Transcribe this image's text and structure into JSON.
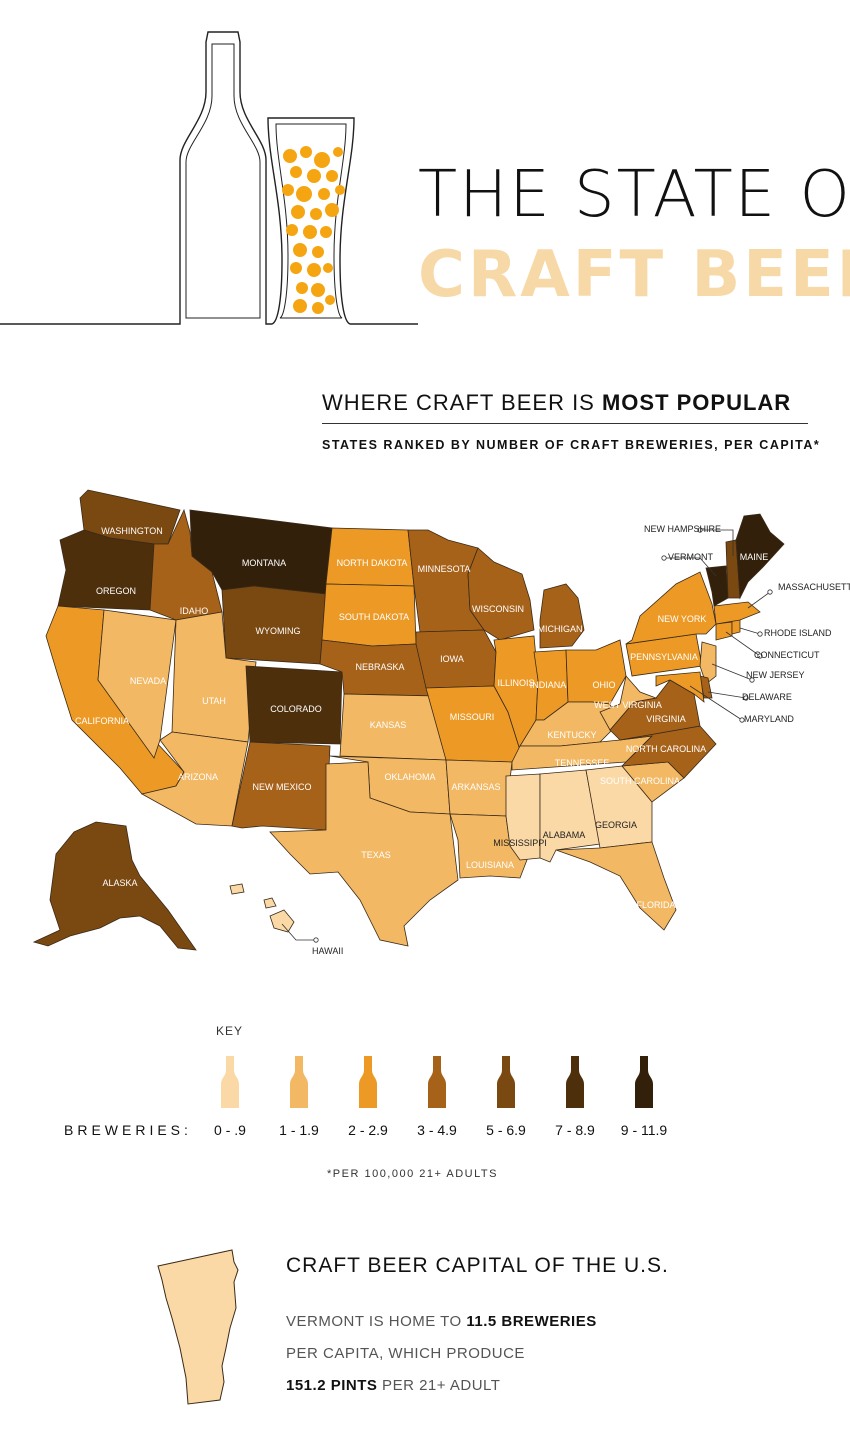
{
  "header": {
    "title_line1": "THE STATE OF",
    "title_line2": "CRAFT BEER"
  },
  "section": {
    "heading_plain": "WHERE CRAFT BEER IS ",
    "heading_bold": "MOST POPULAR",
    "subtitle": "STATES RANKED BY NUMBER OF CRAFT BREWERIES, PER CAPITA*"
  },
  "colors": {
    "c1": "#fad9a6",
    "c2": "#f2b864",
    "c3": "#ec9a25",
    "c4": "#a7621a",
    "c5": "#7a4811",
    "c6": "#4e2f0c",
    "c7": "#33200a",
    "bubble": "#f5a511"
  },
  "chart_data": {
    "type": "choropleth",
    "title": "WHERE CRAFT BEER IS MOST POPULAR",
    "subtitle": "STATES RANKED BY NUMBER OF CRAFT BREWERIES, PER CAPITA*",
    "legend": {
      "title": "KEY",
      "label": "BREWERIES:",
      "bins": [
        "0 - .9",
        "1 - 1.9",
        "2 - 2.9",
        "3 - 4.9",
        "5 - 6.9",
        "7 - 8.9",
        "9 - 11.9"
      ]
    },
    "footnote": "*PER 100,000 21+ ADULTS",
    "states": [
      {
        "name": "WASHINGTON",
        "bin": "5 - 6.9"
      },
      {
        "name": "OREGON",
        "bin": "7 - 8.9"
      },
      {
        "name": "CALIFORNIA",
        "bin": "2 - 2.9"
      },
      {
        "name": "NEVADA",
        "bin": "1 - 1.9"
      },
      {
        "name": "IDAHO",
        "bin": "3 - 4.9"
      },
      {
        "name": "MONTANA",
        "bin": "9 - 11.9"
      },
      {
        "name": "WYOMING",
        "bin": "5 - 6.9"
      },
      {
        "name": "UTAH",
        "bin": "1 - 1.9"
      },
      {
        "name": "ARIZONA",
        "bin": "1 - 1.9"
      },
      {
        "name": "COLORADO",
        "bin": "7 - 8.9"
      },
      {
        "name": "NEW MEXICO",
        "bin": "3 - 4.9"
      },
      {
        "name": "NORTH DAKOTA",
        "bin": "2 - 2.9"
      },
      {
        "name": "SOUTH DAKOTA",
        "bin": "2 - 2.9"
      },
      {
        "name": "NEBRASKA",
        "bin": "3 - 4.9"
      },
      {
        "name": "KANSAS",
        "bin": "1 - 1.9"
      },
      {
        "name": "OKLAHOMA",
        "bin": "1 - 1.9"
      },
      {
        "name": "TEXAS",
        "bin": "1 - 1.9"
      },
      {
        "name": "MINNESOTA",
        "bin": "3 - 4.9"
      },
      {
        "name": "IOWA",
        "bin": "3 - 4.9"
      },
      {
        "name": "MISSOURI",
        "bin": "2 - 2.9"
      },
      {
        "name": "ARKANSAS",
        "bin": "1 - 1.9"
      },
      {
        "name": "LOUISIANA",
        "bin": "1 - 1.9"
      },
      {
        "name": "WISCONSIN",
        "bin": "3 - 4.9"
      },
      {
        "name": "ILLINOIS",
        "bin": "2 - 2.9"
      },
      {
        "name": "MICHIGAN",
        "bin": "3 - 4.9"
      },
      {
        "name": "INDIANA",
        "bin": "2 - 2.9"
      },
      {
        "name": "OHIO",
        "bin": "2 - 2.9"
      },
      {
        "name": "KENTUCKY",
        "bin": "1 - 1.9"
      },
      {
        "name": "TENNESSEE",
        "bin": "1 - 1.9"
      },
      {
        "name": "MISSISSIPPI",
        "bin": "0 - .9"
      },
      {
        "name": "ALABAMA",
        "bin": "0 - .9"
      },
      {
        "name": "GEORGIA",
        "bin": "0 - .9"
      },
      {
        "name": "FLORIDA",
        "bin": "1 - 1.9"
      },
      {
        "name": "SOUTH CAROLINA",
        "bin": "1 - 1.9"
      },
      {
        "name": "NORTH CAROLINA",
        "bin": "3 - 4.9"
      },
      {
        "name": "VIRGINIA",
        "bin": "3 - 4.9"
      },
      {
        "name": "WEST VIRGINIA",
        "bin": "1 - 1.9"
      },
      {
        "name": "PENNSYLVANIA",
        "bin": "2 - 2.9"
      },
      {
        "name": "NEW YORK",
        "bin": "2 - 2.9"
      },
      {
        "name": "NEW JERSEY",
        "bin": "1 - 1.9"
      },
      {
        "name": "DELAWARE",
        "bin": "3 - 4.9"
      },
      {
        "name": "MARYLAND",
        "bin": "2 - 2.9"
      },
      {
        "name": "CONNECTICUT",
        "bin": "2 - 2.9"
      },
      {
        "name": "RHODE ISLAND",
        "bin": "2 - 2.9"
      },
      {
        "name": "MASSACHUSETTS",
        "bin": "2 - 2.9"
      },
      {
        "name": "VERMONT",
        "bin": "9 - 11.9"
      },
      {
        "name": "NEW HAMPSHIRE",
        "bin": "5 - 6.9"
      },
      {
        "name": "MAINE",
        "bin": "9 - 11.9"
      },
      {
        "name": "ALASKA",
        "bin": "5 - 6.9"
      },
      {
        "name": "HAWAII",
        "bin": "0 - .9"
      }
    ]
  },
  "capital": {
    "heading": "CRAFT BEER CAPITAL OF THE U.S.",
    "line1_plain": "VERMONT IS HOME TO ",
    "line1_bold": "11.5 BREWERIES",
    "line2": "PER CAPITA, WHICH PRODUCE",
    "line3_bold": "151.2 PINTS",
    "line3_plain": " PER 21+ ADULT"
  }
}
